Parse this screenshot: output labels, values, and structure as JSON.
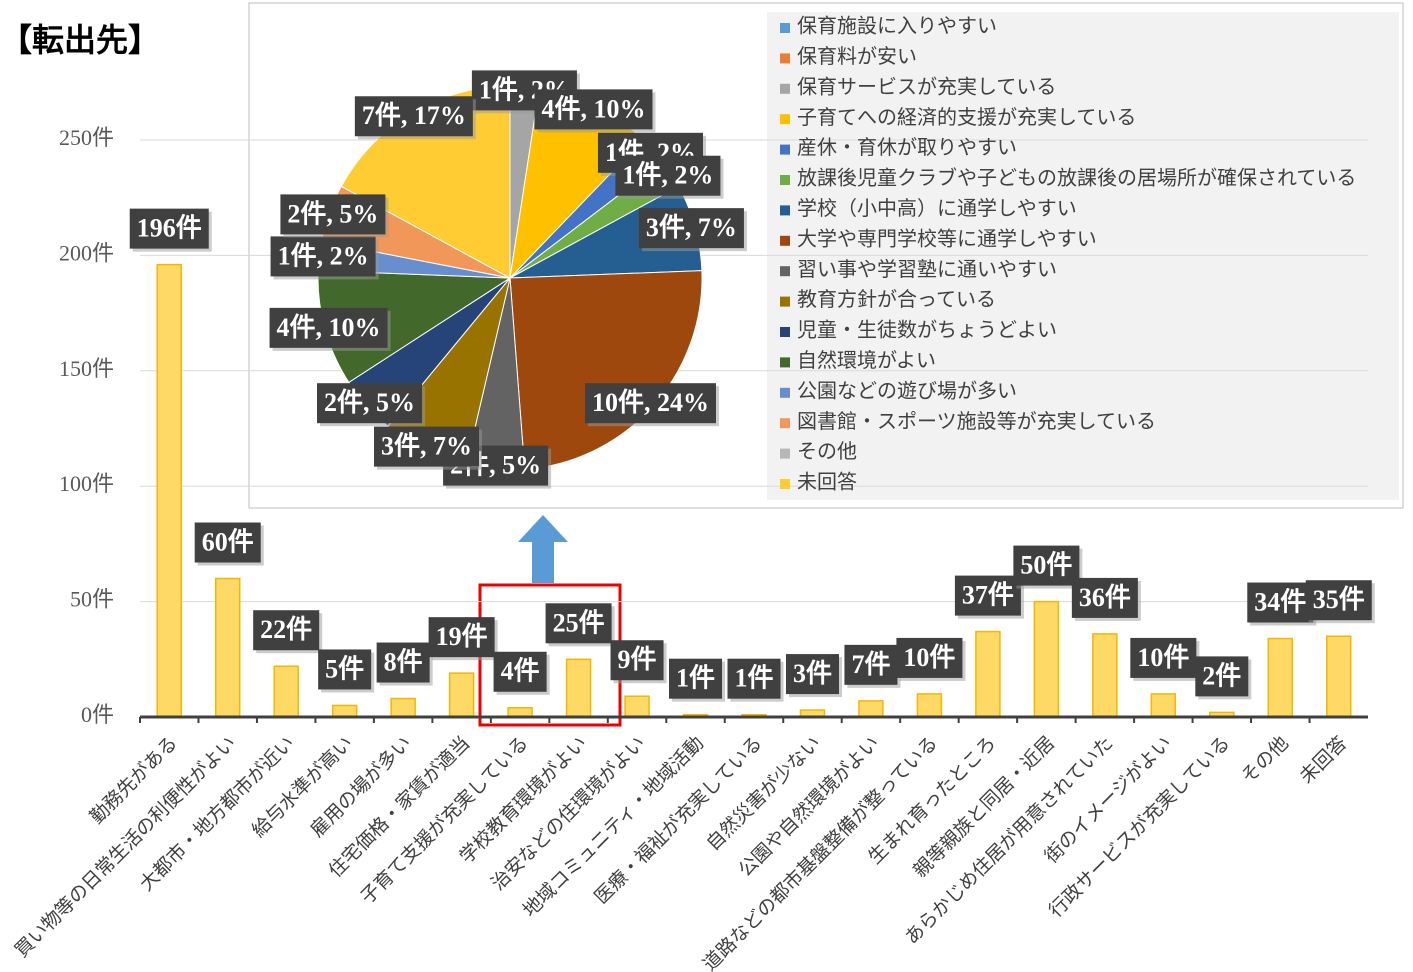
{
  "chart_data": [
    {
      "type": "bar",
      "title": "【転出先】",
      "categories": [
        "勤務先がある",
        "買い物等の日常生活の利便性がよい",
        "大都市・地方都市が近い",
        "給与水準が高い",
        "雇用の場が多い",
        "住宅価格・家賃が適当",
        "子育て支援が充実している",
        "学校教育環境がよい",
        "治安などの住環境がよい",
        "地域コミュニティ・地域活動",
        "医療・福祉が充実している",
        "自然災害が少ない",
        "公園や自然環境がよい",
        "道路などの都市基盤整備が整っている",
        "生まれ育ったところ",
        "親等親族と同居・近居",
        "あらかじめ住居が用意されていた",
        "街のイメージがよい",
        "行政サービスが充実している",
        "その他",
        "未回答"
      ],
      "values": [
        196,
        60,
        22,
        5,
        8,
        19,
        4,
        25,
        9,
        1,
        1,
        3,
        7,
        10,
        37,
        50,
        36,
        10,
        2,
        34,
        35
      ],
      "value_labels": [
        "196件",
        "60件",
        "22件",
        "5件",
        "8件",
        "19件",
        "4件",
        "25件",
        "9件",
        "1件",
        "1件",
        "3件",
        "7件",
        "10件",
        "37件",
        "50件",
        "36件",
        "10件",
        "2件",
        "34件",
        "35件"
      ],
      "color": "#ffd966",
      "ylim": [
        0,
        250
      ],
      "yticks": [
        {
          "value": 0,
          "label": "0件"
        },
        {
          "value": 50,
          "label": "50件"
        },
        {
          "value": 100,
          "label": "100件"
        },
        {
          "value": 150,
          "label": "150件"
        },
        {
          "value": 200,
          "label": "200件"
        },
        {
          "value": 250,
          "label": "250件"
        }
      ],
      "grid": true
    },
    {
      "type": "pie",
      "categories": [
        "保育施設に入りやすい",
        "保育料が安い",
        "保育サービスが充実している",
        "子育てへの経済的支援が充実している",
        "産休・育休が取りやすい",
        "放課後児童クラブや子どもの放課後の居場所が確保されている",
        "学校（小中高）に通学しやすい",
        "大学や専門学校等に通学しやすい",
        "習い事や学習塾に通いやすい",
        "教育方針が合っている",
        "児童・生徒数がちょうどよい",
        "自然環境がよい",
        "公園などの遊び場が多い",
        "図書館・スポーツ施設等が充実している",
        "その他",
        "未回答"
      ],
      "values": [
        0,
        0,
        1,
        4,
        1,
        1,
        3,
        10,
        2,
        3,
        2,
        4,
        1,
        2,
        0,
        7
      ],
      "value_labels": [
        null,
        null,
        "1件, 2%",
        "4件, 10%",
        "1件, 2%",
        "1件, 2%",
        "3件, 7%",
        "10件, 24%",
        "2件, 5%",
        "3件, 7%",
        "2件, 5%",
        "4件, 10%",
        "1件, 2%",
        "2件, 5%",
        null,
        "7件, 17%"
      ],
      "colors": [
        "#5b9bd5",
        "#ed7d31",
        "#a5a5a5",
        "#ffc000",
        "#4472c4",
        "#70ad47",
        "#255e91",
        "#9e480e",
        "#636363",
        "#997300",
        "#264478",
        "#43682b",
        "#698ed0",
        "#f1975a",
        "#b7b7b7",
        "#ffcd33"
      ]
    }
  ]
}
